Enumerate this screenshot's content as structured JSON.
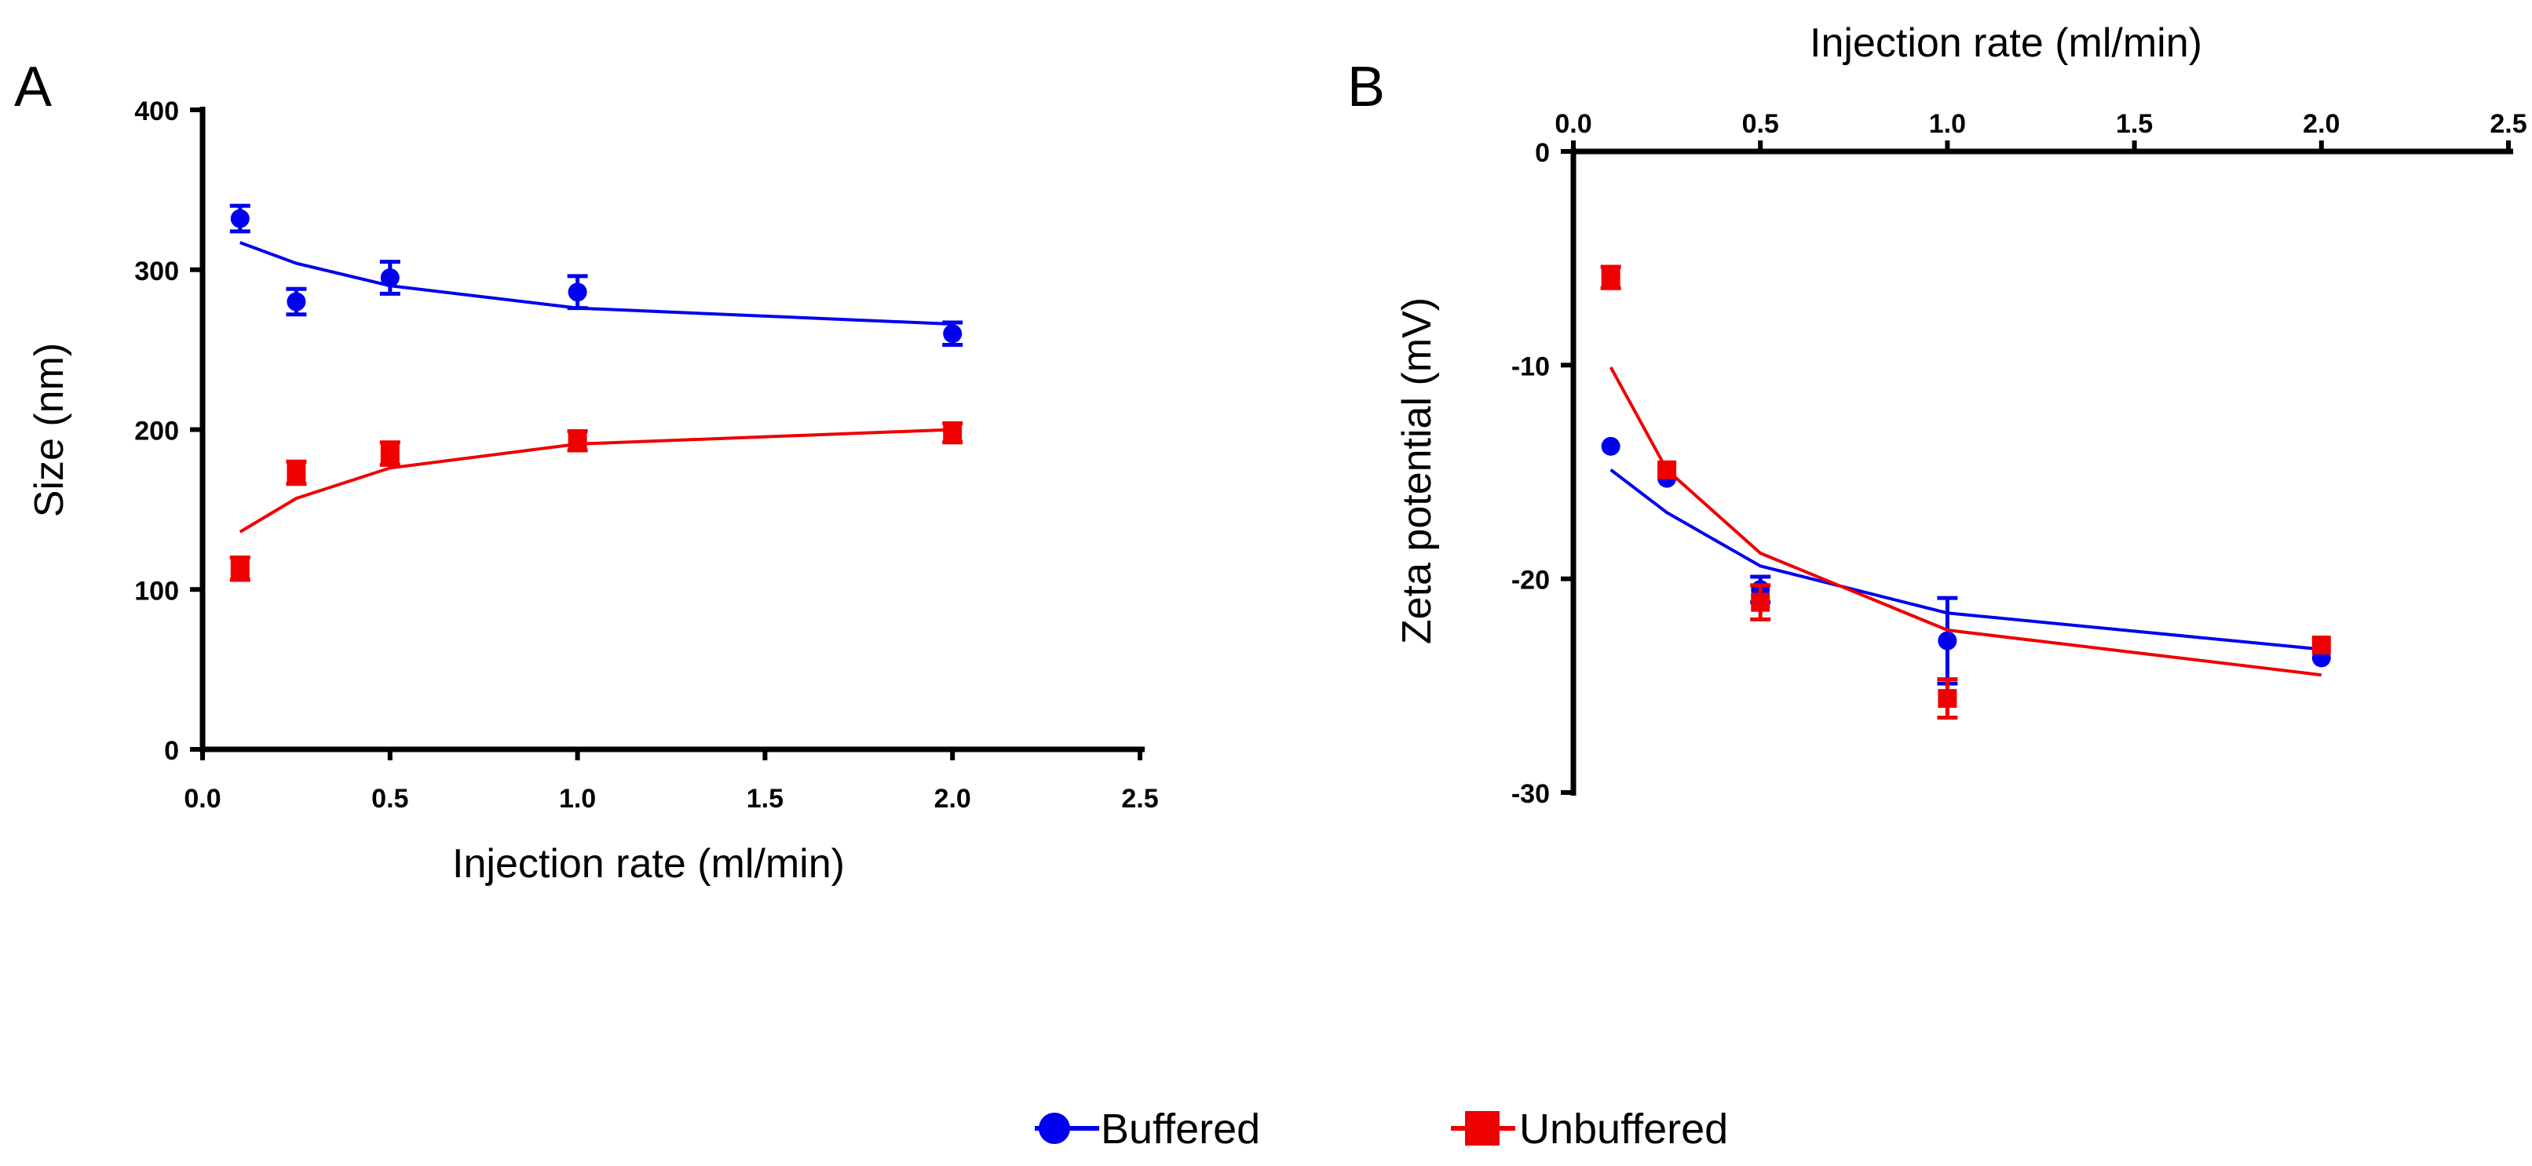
{
  "colors": {
    "buffered": "#0000ee",
    "unbuffered": "#ee0000",
    "axis": "#000000"
  },
  "legend": [
    {
      "label": "Buffered",
      "marker": "circle",
      "color": "#0000ee"
    },
    {
      "label": "Unbuffered",
      "marker": "square",
      "color": "#ee0000"
    }
  ],
  "chart_data": [
    {
      "panel": "A",
      "type": "scatter",
      "title": "",
      "xlabel": "Injection rate (ml/min)",
      "ylabel": "Size (nm)",
      "xlim": [
        0,
        2.5
      ],
      "ylim": [
        0,
        400
      ],
      "x_axis_position": "bottom",
      "xticks": [
        0,
        0.5,
        1.0,
        1.5,
        2.0,
        2.5
      ],
      "xtick_labels": [
        "0.0",
        "0.5",
        "1.0",
        "1.5",
        "2.0",
        "2.5"
      ],
      "yticks": [
        0,
        100,
        200,
        300,
        400
      ],
      "ytick_labels": [
        "0",
        "100",
        "200",
        "300",
        "400"
      ],
      "series": [
        {
          "name": "Buffered",
          "marker": "circle",
          "color": "#0000ee",
          "x": [
            0.1,
            0.25,
            0.5,
            1.0,
            2.0
          ],
          "y": [
            332,
            280,
            295,
            286,
            260
          ],
          "err": [
            8,
            8,
            10,
            10,
            7
          ],
          "fit": {
            "x": [
              0.1,
              0.25,
              0.5,
              1.0,
              2.0
            ],
            "y": [
              317,
              304,
              290,
              276,
              266
            ]
          }
        },
        {
          "name": "Unbuffered",
          "marker": "square",
          "color": "#ee0000",
          "x": [
            0.1,
            0.25,
            0.5,
            1.0,
            2.0
          ],
          "y": [
            113,
            173,
            185,
            193,
            198
          ],
          "err": [
            7,
            7,
            7,
            6,
            6
          ],
          "fit": {
            "x": [
              0.1,
              0.25,
              0.5,
              1.0,
              2.0
            ],
            "y": [
              136,
              157,
              176,
              191,
              200
            ]
          }
        }
      ]
    },
    {
      "panel": "B",
      "type": "scatter",
      "title": "",
      "xlabel": "Injection rate (ml/min)",
      "ylabel": "Zeta potential (mV)",
      "xlim": [
        0,
        2.5
      ],
      "ylim": [
        -30,
        0
      ],
      "x_axis_position": "top",
      "xticks": [
        0,
        0.5,
        1.0,
        1.5,
        2.0,
        2.5
      ],
      "xtick_labels": [
        "0.0",
        "0.5",
        "1.0",
        "1.5",
        "2.0",
        "2.5"
      ],
      "yticks": [
        0,
        -10,
        -20,
        -30
      ],
      "ytick_labels": [
        "0",
        "-10",
        "-20",
        "-30"
      ],
      "series": [
        {
          "name": "Buffered",
          "marker": "circle",
          "color": "#0000ee",
          "x": [
            0.1,
            0.25,
            0.5,
            1.0,
            2.0
          ],
          "y": [
            -13.8,
            -15.3,
            -20.5,
            -22.9,
            -23.7
          ],
          "err": [
            0,
            0,
            0.6,
            2.0,
            0
          ],
          "fit": {
            "x": [
              0.1,
              0.25,
              0.5,
              1.0,
              2.0
            ],
            "y": [
              -14.9,
              -16.9,
              -19.4,
              -21.6,
              -23.3
            ]
          }
        },
        {
          "name": "Unbuffered",
          "marker": "square",
          "color": "#ee0000",
          "x": [
            0.1,
            0.25,
            0.5,
            1.0,
            2.0
          ],
          "y": [
            -5.9,
            -14.9,
            -21.1,
            -25.6,
            -23.1
          ],
          "err": [
            0.5,
            0,
            0.8,
            0.9,
            0
          ],
          "fit": {
            "x": [
              0.1,
              0.25,
              0.5,
              1.0,
              2.0
            ],
            "y": [
              -10.1,
              -14.9,
              -18.8,
              -22.4,
              -24.5
            ]
          }
        }
      ]
    }
  ]
}
